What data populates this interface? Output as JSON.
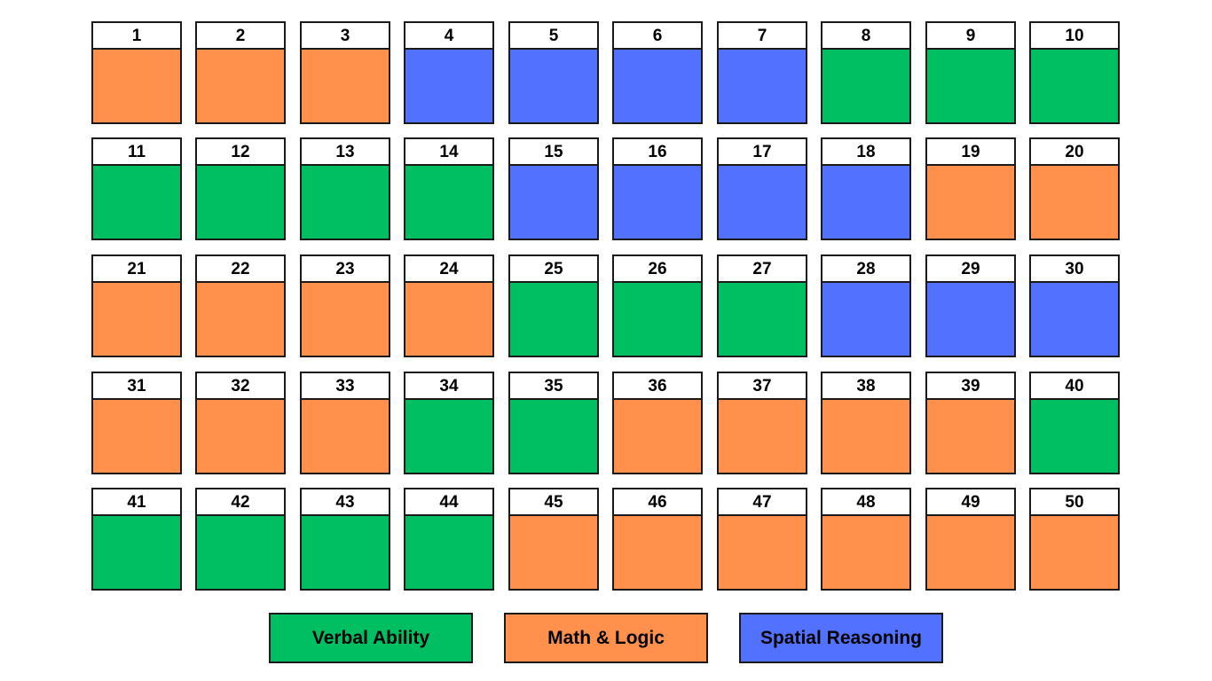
{
  "categories": {
    "verbal": {
      "label": "Verbal Ability",
      "color": "#00BF63"
    },
    "math": {
      "label": "Math & Logic",
      "color": "#FF914D"
    },
    "spatial": {
      "label": "Spatial Reasoning",
      "color": "#5271FF"
    }
  },
  "legend": [
    {
      "key": "verbal",
      "label": "Verbal Ability",
      "color": "#00BF63"
    },
    {
      "key": "math",
      "label": "Math & Logic",
      "color": "#FF914D"
    },
    {
      "key": "spatial",
      "label": "Spatial Reasoning",
      "color": "#5271FF"
    }
  ],
  "grid": {
    "rows": 5,
    "cols": 10,
    "cells": [
      {
        "number": "1",
        "category": "math"
      },
      {
        "number": "2",
        "category": "math"
      },
      {
        "number": "3",
        "category": "math"
      },
      {
        "number": "4",
        "category": "spatial"
      },
      {
        "number": "5",
        "category": "spatial"
      },
      {
        "number": "6",
        "category": "spatial"
      },
      {
        "number": "7",
        "category": "spatial"
      },
      {
        "number": "8",
        "category": "verbal"
      },
      {
        "number": "9",
        "category": "verbal"
      },
      {
        "number": "10",
        "category": "verbal"
      },
      {
        "number": "11",
        "category": "verbal"
      },
      {
        "number": "12",
        "category": "verbal"
      },
      {
        "number": "13",
        "category": "verbal"
      },
      {
        "number": "14",
        "category": "verbal"
      },
      {
        "number": "15",
        "category": "spatial"
      },
      {
        "number": "16",
        "category": "spatial"
      },
      {
        "number": "17",
        "category": "spatial"
      },
      {
        "number": "18",
        "category": "spatial"
      },
      {
        "number": "19",
        "category": "math"
      },
      {
        "number": "20",
        "category": "math"
      },
      {
        "number": "21",
        "category": "math"
      },
      {
        "number": "22",
        "category": "math"
      },
      {
        "number": "23",
        "category": "math"
      },
      {
        "number": "24",
        "category": "math"
      },
      {
        "number": "25",
        "category": "verbal"
      },
      {
        "number": "26",
        "category": "verbal"
      },
      {
        "number": "27",
        "category": "verbal"
      },
      {
        "number": "28",
        "category": "spatial"
      },
      {
        "number": "29",
        "category": "spatial"
      },
      {
        "number": "30",
        "category": "spatial"
      },
      {
        "number": "31",
        "category": "math"
      },
      {
        "number": "32",
        "category": "math"
      },
      {
        "number": "33",
        "category": "math"
      },
      {
        "number": "34",
        "category": "verbal"
      },
      {
        "number": "35",
        "category": "verbal"
      },
      {
        "number": "36",
        "category": "math"
      },
      {
        "number": "37",
        "category": "math"
      },
      {
        "number": "38",
        "category": "math"
      },
      {
        "number": "39",
        "category": "math"
      },
      {
        "number": "40",
        "category": "verbal"
      },
      {
        "number": "41",
        "category": "verbal"
      },
      {
        "number": "42",
        "category": "verbal"
      },
      {
        "number": "43",
        "category": "verbal"
      },
      {
        "number": "44",
        "category": "verbal"
      },
      {
        "number": "45",
        "category": "math"
      },
      {
        "number": "46",
        "category": "math"
      },
      {
        "number": "47",
        "category": "math"
      },
      {
        "number": "48",
        "category": "math"
      },
      {
        "number": "49",
        "category": "math"
      },
      {
        "number": "50",
        "category": "math"
      }
    ]
  }
}
